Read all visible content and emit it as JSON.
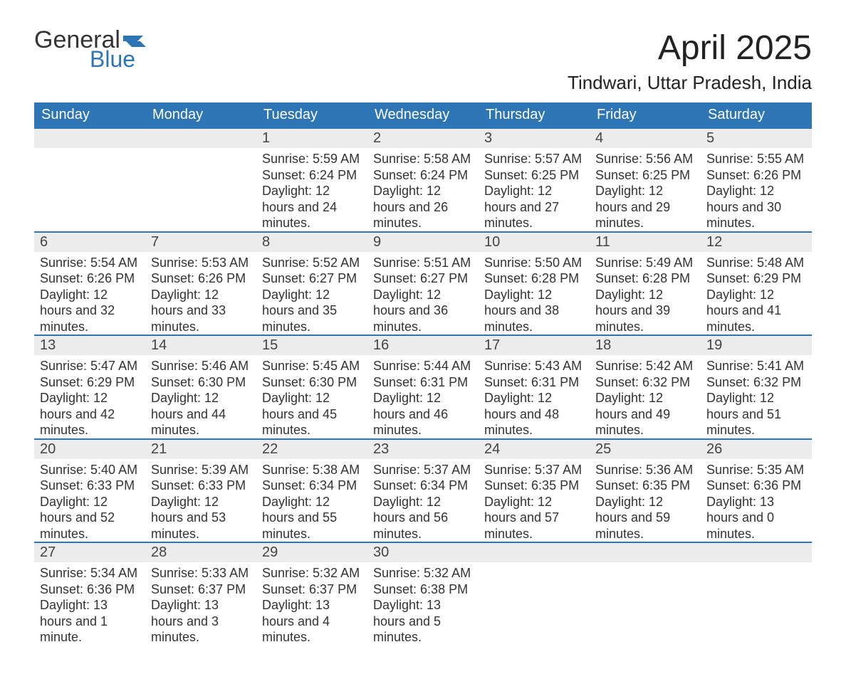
{
  "brand": {
    "general": "General",
    "blue": "Blue",
    "flag_color": "#2e75b6"
  },
  "title": {
    "month": "April 2025",
    "location": "Tindwari, Uttar Pradesh, India"
  },
  "style": {
    "header_bg": "#2e75b6",
    "header_text": "#ffffff",
    "daybar_bg": "#ececec",
    "daybar_border": "#2e75b6",
    "body_text": "#333333",
    "page_bg": "#ffffff",
    "title_fontsize": 48,
    "location_fontsize": 26,
    "header_fontsize": 20,
    "daynum_fontsize": 20,
    "body_fontsize": 18
  },
  "weekdays": [
    "Sunday",
    "Monday",
    "Tuesday",
    "Wednesday",
    "Thursday",
    "Friday",
    "Saturday"
  ],
  "weeks": [
    [
      null,
      null,
      {
        "n": "1",
        "sr": "Sunrise: 5:59 AM",
        "ss": "Sunset: 6:24 PM",
        "dl": "Daylight: 12 hours and 24 minutes."
      },
      {
        "n": "2",
        "sr": "Sunrise: 5:58 AM",
        "ss": "Sunset: 6:24 PM",
        "dl": "Daylight: 12 hours and 26 minutes."
      },
      {
        "n": "3",
        "sr": "Sunrise: 5:57 AM",
        "ss": "Sunset: 6:25 PM",
        "dl": "Daylight: 12 hours and 27 minutes."
      },
      {
        "n": "4",
        "sr": "Sunrise: 5:56 AM",
        "ss": "Sunset: 6:25 PM",
        "dl": "Daylight: 12 hours and 29 minutes."
      },
      {
        "n": "5",
        "sr": "Sunrise: 5:55 AM",
        "ss": "Sunset: 6:26 PM",
        "dl": "Daylight: 12 hours and 30 minutes."
      }
    ],
    [
      {
        "n": "6",
        "sr": "Sunrise: 5:54 AM",
        "ss": "Sunset: 6:26 PM",
        "dl": "Daylight: 12 hours and 32 minutes."
      },
      {
        "n": "7",
        "sr": "Sunrise: 5:53 AM",
        "ss": "Sunset: 6:26 PM",
        "dl": "Daylight: 12 hours and 33 minutes."
      },
      {
        "n": "8",
        "sr": "Sunrise: 5:52 AM",
        "ss": "Sunset: 6:27 PM",
        "dl": "Daylight: 12 hours and 35 minutes."
      },
      {
        "n": "9",
        "sr": "Sunrise: 5:51 AM",
        "ss": "Sunset: 6:27 PM",
        "dl": "Daylight: 12 hours and 36 minutes."
      },
      {
        "n": "10",
        "sr": "Sunrise: 5:50 AM",
        "ss": "Sunset: 6:28 PM",
        "dl": "Daylight: 12 hours and 38 minutes."
      },
      {
        "n": "11",
        "sr": "Sunrise: 5:49 AM",
        "ss": "Sunset: 6:28 PM",
        "dl": "Daylight: 12 hours and 39 minutes."
      },
      {
        "n": "12",
        "sr": "Sunrise: 5:48 AM",
        "ss": "Sunset: 6:29 PM",
        "dl": "Daylight: 12 hours and 41 minutes."
      }
    ],
    [
      {
        "n": "13",
        "sr": "Sunrise: 5:47 AM",
        "ss": "Sunset: 6:29 PM",
        "dl": "Daylight: 12 hours and 42 minutes."
      },
      {
        "n": "14",
        "sr": "Sunrise: 5:46 AM",
        "ss": "Sunset: 6:30 PM",
        "dl": "Daylight: 12 hours and 44 minutes."
      },
      {
        "n": "15",
        "sr": "Sunrise: 5:45 AM",
        "ss": "Sunset: 6:30 PM",
        "dl": "Daylight: 12 hours and 45 minutes."
      },
      {
        "n": "16",
        "sr": "Sunrise: 5:44 AM",
        "ss": "Sunset: 6:31 PM",
        "dl": "Daylight: 12 hours and 46 minutes."
      },
      {
        "n": "17",
        "sr": "Sunrise: 5:43 AM",
        "ss": "Sunset: 6:31 PM",
        "dl": "Daylight: 12 hours and 48 minutes."
      },
      {
        "n": "18",
        "sr": "Sunrise: 5:42 AM",
        "ss": "Sunset: 6:32 PM",
        "dl": "Daylight: 12 hours and 49 minutes."
      },
      {
        "n": "19",
        "sr": "Sunrise: 5:41 AM",
        "ss": "Sunset: 6:32 PM",
        "dl": "Daylight: 12 hours and 51 minutes."
      }
    ],
    [
      {
        "n": "20",
        "sr": "Sunrise: 5:40 AM",
        "ss": "Sunset: 6:33 PM",
        "dl": "Daylight: 12 hours and 52 minutes."
      },
      {
        "n": "21",
        "sr": "Sunrise: 5:39 AM",
        "ss": "Sunset: 6:33 PM",
        "dl": "Daylight: 12 hours and 53 minutes."
      },
      {
        "n": "22",
        "sr": "Sunrise: 5:38 AM",
        "ss": "Sunset: 6:34 PM",
        "dl": "Daylight: 12 hours and 55 minutes."
      },
      {
        "n": "23",
        "sr": "Sunrise: 5:37 AM",
        "ss": "Sunset: 6:34 PM",
        "dl": "Daylight: 12 hours and 56 minutes."
      },
      {
        "n": "24",
        "sr": "Sunrise: 5:37 AM",
        "ss": "Sunset: 6:35 PM",
        "dl": "Daylight: 12 hours and 57 minutes."
      },
      {
        "n": "25",
        "sr": "Sunrise: 5:36 AM",
        "ss": "Sunset: 6:35 PM",
        "dl": "Daylight: 12 hours and 59 minutes."
      },
      {
        "n": "26",
        "sr": "Sunrise: 5:35 AM",
        "ss": "Sunset: 6:36 PM",
        "dl": "Daylight: 13 hours and 0 minutes."
      }
    ],
    [
      {
        "n": "27",
        "sr": "Sunrise: 5:34 AM",
        "ss": "Sunset: 6:36 PM",
        "dl": "Daylight: 13 hours and 1 minute."
      },
      {
        "n": "28",
        "sr": "Sunrise: 5:33 AM",
        "ss": "Sunset: 6:37 PM",
        "dl": "Daylight: 13 hours and 3 minutes."
      },
      {
        "n": "29",
        "sr": "Sunrise: 5:32 AM",
        "ss": "Sunset: 6:37 PM",
        "dl": "Daylight: 13 hours and 4 minutes."
      },
      {
        "n": "30",
        "sr": "Sunrise: 5:32 AM",
        "ss": "Sunset: 6:38 PM",
        "dl": "Daylight: 13 hours and 5 minutes."
      },
      null,
      null,
      null
    ]
  ]
}
